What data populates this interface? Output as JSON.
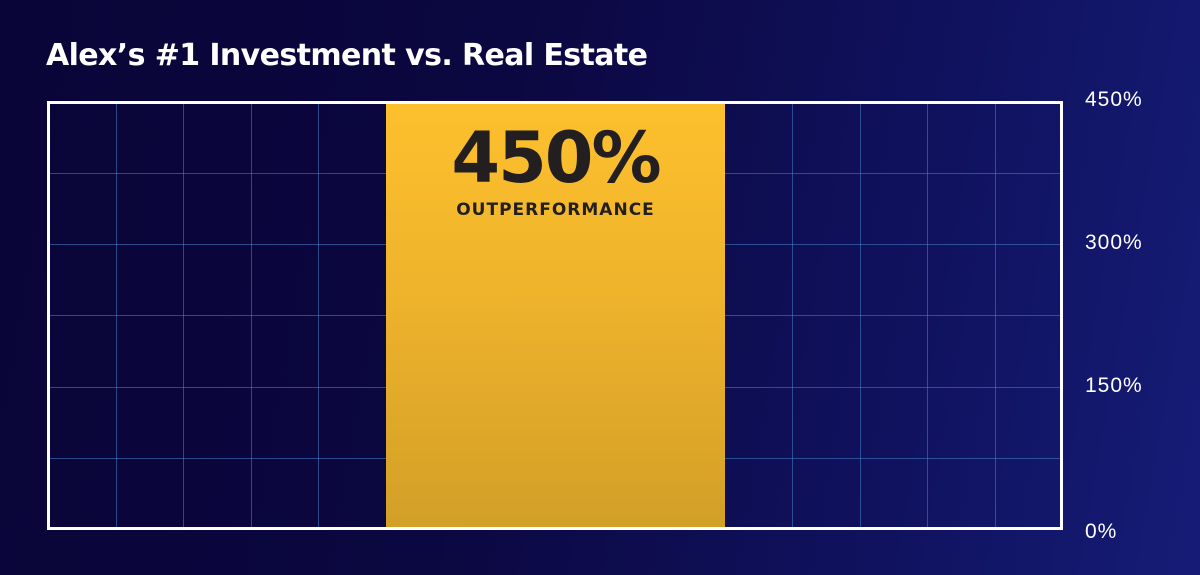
{
  "chart_data": {
    "type": "bar",
    "title": "Alex’s #1 Investment vs. Real Estate",
    "categories": [
      "Alex’s #1 Investment vs. Real Estate"
    ],
    "values": [
      450
    ],
    "value_label": "450%",
    "annotation": "OUTPERFORMANCE",
    "xlabel": "",
    "ylabel": "",
    "ylim": [
      0,
      450
    ],
    "y_ticks": [
      "450%",
      "300%",
      "150%",
      "0%"
    ],
    "y_axis_position": "right",
    "grid": true,
    "grid_rows": 6,
    "grid_columns": 15,
    "legend": null,
    "colors": {
      "bar_top": "#fcc02d",
      "bar_bottom": "#d29f27",
      "background_left": "#0a0538",
      "background_right": "#161c76",
      "grid": "#4682c8",
      "frame": "#ffffff",
      "label_text": "#231f20"
    }
  },
  "header": {
    "title": "Alex’s #1 Investment vs. Real Estate"
  },
  "bar": {
    "value_label": "450%",
    "caption": "OUTPERFORMANCE"
  },
  "axis": {
    "ticks": [
      {
        "label": "450%",
        "top": 88
      },
      {
        "label": "300%",
        "top": 231
      },
      {
        "label": "150%",
        "top": 374
      },
      {
        "label": "0%",
        "top": 520
      }
    ]
  }
}
